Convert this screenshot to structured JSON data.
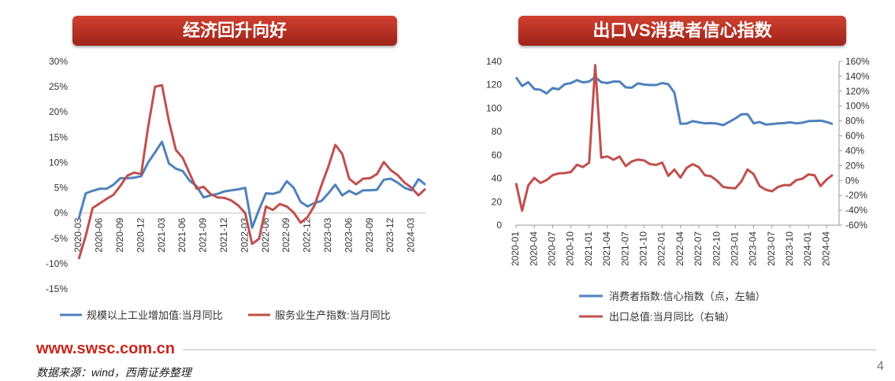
{
  "left_title": "经济回升向好",
  "right_title": "出口VS消费者信心指数",
  "footer": {
    "site": "www.swsc.com.cn",
    "source": "数据来源：wind，西南证券整理",
    "page": "4"
  },
  "chart_data": [
    {
      "type": "line",
      "title": "经济回升向好",
      "ylim": [
        -15,
        30
      ],
      "yticks": [
        -15,
        -10,
        -5,
        0,
        5,
        10,
        15,
        20,
        25,
        30
      ],
      "ytick_labels": [
        "-15%",
        "-10%",
        "-5%",
        "0%",
        "5%",
        "10%",
        "15%",
        "20%",
        "25%",
        "30%"
      ],
      "xtick_labels": [
        "2020-03",
        "2020-06",
        "2020-09",
        "2020-12",
        "2021-03",
        "2021-06",
        "2021-09",
        "2021-12",
        "2022-03",
        "2022-06",
        "2022-09",
        "2022-12",
        "2023-03",
        "2023-06",
        "2023-09",
        "2023-12",
        "2024-03"
      ],
      "x": [
        "2020-03",
        "2020-04",
        "2020-05",
        "2020-06",
        "2020-07",
        "2020-08",
        "2020-09",
        "2020-10",
        "2020-11",
        "2020-12",
        "2021-01",
        "2021-02",
        "2021-03",
        "2021-04",
        "2021-05",
        "2021-06",
        "2021-07",
        "2021-08",
        "2021-09",
        "2021-10",
        "2021-11",
        "2021-12",
        "2022-01",
        "2022-02",
        "2022-03",
        "2022-04",
        "2022-05",
        "2022-06",
        "2022-07",
        "2022-08",
        "2022-09",
        "2022-10",
        "2022-11",
        "2022-12",
        "2023-01",
        "2023-02",
        "2023-03",
        "2023-04",
        "2023-05",
        "2023-06",
        "2023-07",
        "2023-08",
        "2023-09",
        "2023-10",
        "2023-11",
        "2023-12",
        "2024-01",
        "2024-02",
        "2024-03",
        "2024-04",
        "2024-05"
      ],
      "series": [
        {
          "name": "规模以上工业增加值:当月同比",
          "color": "#4f81bd",
          "values": [
            -1.1,
            3.9,
            4.4,
            4.8,
            4.8,
            5.6,
            6.9,
            6.9,
            7.0,
            7.3,
            10.0,
            12.0,
            14.1,
            9.8,
            8.8,
            8.3,
            6.4,
            5.3,
            3.1,
            3.5,
            3.8,
            4.3,
            4.5,
            4.7,
            5.0,
            -2.9,
            0.7,
            3.9,
            3.8,
            4.2,
            6.3,
            5.0,
            2.2,
            1.3,
            2.0,
            2.4,
            3.9,
            5.6,
            3.5,
            4.4,
            3.7,
            4.5,
            4.5,
            4.6,
            6.6,
            6.8,
            6.0,
            5.0,
            4.5,
            6.7,
            5.6
          ]
        },
        {
          "name": "服务业生产指数:当月同比",
          "color": "#c0504d",
          "values": [
            -9.1,
            -4.5,
            1.0,
            1.9,
            2.8,
            3.6,
            5.4,
            7.4,
            8.0,
            7.7,
            17.0,
            25.0,
            25.3,
            18.2,
            12.5,
            10.9,
            7.8,
            4.8,
            5.2,
            3.8,
            3.1,
            3.0,
            2.5,
            1.5,
            0.0,
            -6.1,
            -5.1,
            1.3,
            0.6,
            1.8,
            1.3,
            0.1,
            -1.9,
            -0.8,
            1.5,
            5.5,
            9.2,
            13.5,
            11.7,
            6.8,
            5.7,
            6.8,
            6.9,
            7.7,
            10.1,
            8.5,
            7.5,
            6.0,
            5.0,
            3.5,
            4.8
          ]
        }
      ],
      "legend_position": "bottom"
    },
    {
      "type": "line",
      "title": "出口VS消费者信心指数",
      "ylim_left": [
        0,
        140
      ],
      "ylim_right": [
        -60,
        160
      ],
      "yticks_left": [
        0,
        20,
        40,
        60,
        80,
        100,
        120,
        140
      ],
      "yticks_left_labels": [
        "0",
        "20",
        "40",
        "60",
        "80",
        "100",
        "120",
        "140"
      ],
      "yticks_right": [
        -60,
        -40,
        -20,
        0,
        20,
        40,
        60,
        80,
        100,
        120,
        140,
        160
      ],
      "yticks_right_labels": [
        "-60%",
        "-40%",
        "-20%",
        "0%",
        "20%",
        "40%",
        "60%",
        "80%",
        "100%",
        "120%",
        "140%",
        "160%"
      ],
      "xtick_labels": [
        "2020-01",
        "2020-04",
        "2020-07",
        "2020-10",
        "2021-01",
        "2021-04",
        "2021-07",
        "2021-10",
        "2022-01",
        "2022-04",
        "2022-07",
        "2022-10",
        "2023-01",
        "2023-04",
        "2023-07",
        "2023-10",
        "2024-01",
        "2024-04"
      ],
      "x": [
        "2020-01",
        "2020-02",
        "2020-03",
        "2020-04",
        "2020-05",
        "2020-06",
        "2020-07",
        "2020-08",
        "2020-09",
        "2020-10",
        "2020-11",
        "2020-12",
        "2021-01",
        "2021-02",
        "2021-03",
        "2021-04",
        "2021-05",
        "2021-06",
        "2021-07",
        "2021-08",
        "2021-09",
        "2021-10",
        "2021-11",
        "2021-12",
        "2022-01",
        "2022-02",
        "2022-03",
        "2022-04",
        "2022-05",
        "2022-06",
        "2022-07",
        "2022-08",
        "2022-09",
        "2022-10",
        "2022-11",
        "2022-12",
        "2023-01",
        "2023-02",
        "2023-03",
        "2023-04",
        "2023-05",
        "2023-06",
        "2023-07",
        "2023-08",
        "2023-09",
        "2023-10",
        "2023-11",
        "2023-12",
        "2024-01",
        "2024-02",
        "2024-03",
        "2024-04",
        "2024-05"
      ],
      "series": [
        {
          "name": "消费者指数:信心指数（点，左轴）",
          "axis": "left",
          "color": "#4f81bd",
          "values": [
            126.4,
            118.9,
            122.2,
            116.4,
            115.8,
            112.6,
            117.2,
            116.1,
            120.5,
            121.4,
            124.0,
            122.1,
            122.8,
            126.7,
            122.2,
            121.5,
            122.8,
            122.8,
            117.8,
            117.5,
            121.2,
            120.2,
            119.8,
            119.8,
            121.5,
            120.5,
            113.2,
            86.7,
            86.8,
            88.9,
            87.9,
            87.0,
            87.2,
            86.8,
            85.5,
            88.3,
            91.2,
            94.7,
            94.9,
            87.1,
            88.2,
            86.0,
            86.4,
            87.0,
            87.2,
            87.9,
            87.0,
            87.6,
            88.9,
            89.1,
            89.4,
            88.2,
            86.4
          ]
        },
        {
          "name": "出口总值:当月同比（右轴）",
          "axis": "right",
          "color": "#c0504d",
          "values": [
            -3.5,
            -40.6,
            -6.6,
            3.5,
            -3.3,
            0.5,
            7.2,
            9.5,
            9.9,
            11.4,
            21.1,
            18.1,
            24.0,
            154.9,
            30.6,
            32.3,
            27.9,
            32.2,
            19.3,
            25.6,
            28.1,
            27.1,
            22.0,
            20.9,
            24.1,
            6.2,
            14.7,
            3.9,
            16.9,
            22.0,
            18.0,
            7.1,
            5.7,
            -0.3,
            -8.7,
            -9.9,
            -10.5,
            -1.3,
            14.8,
            8.5,
            -7.5,
            -12.4,
            -14.5,
            -8.8,
            -6.2,
            -6.4,
            0.5,
            2.3,
            8.1,
            7.1,
            -7.5,
            1.5,
            7.6
          ]
        }
      ],
      "legend_position": "bottom"
    }
  ]
}
